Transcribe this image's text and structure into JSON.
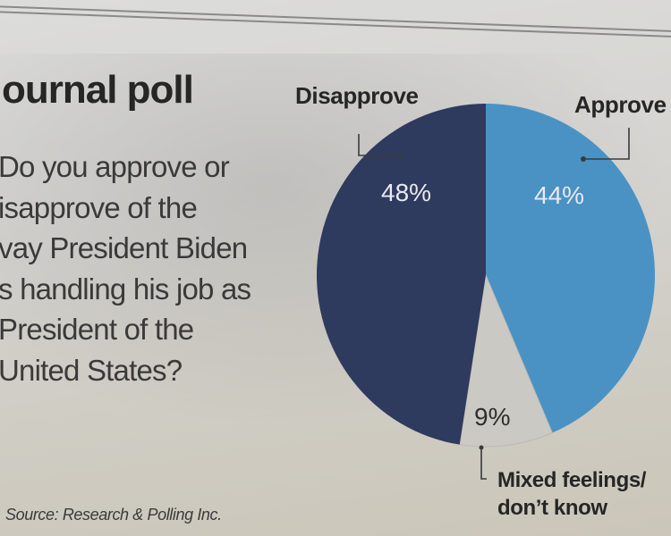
{
  "header": {
    "title": "ournal poll"
  },
  "question": {
    "lines": [
      "Do you approve or",
      "isapprove of the",
      "vay President Biden",
      "s handling his job as",
      "President of the",
      "United States?"
    ]
  },
  "source": "Source: Research & Polling Inc.",
  "colors": {
    "approve": "#4a92c4",
    "disapprove": "#2f3a5f",
    "mixed": "#cbc9c3",
    "leader_line": "#3a3a3a"
  },
  "chart_data": {
    "type": "pie",
    "title": "Journal poll",
    "question": "Do you approve or disapprove of the way President Biden is handling his job as President of the United States?",
    "start": "top",
    "direction": "clockwise",
    "slices": [
      {
        "name": "Approve",
        "value": 44,
        "label": "44%"
      },
      {
        "name": "Mixed feelings/ don't know",
        "value": 9,
        "label": "9%"
      },
      {
        "name": "Disapprove",
        "value": 48,
        "label": "48%"
      }
    ],
    "legend": "direct-labels",
    "source": "Source: Research & Polling Inc."
  },
  "labels": {
    "disapprove": "Disapprove",
    "approve": "Approve",
    "mixed_line1": "Mixed feelings/",
    "mixed_line2": "don’t know",
    "pct_disapprove": "48%",
    "pct_approve": "44%",
    "pct_mixed": "9%"
  }
}
